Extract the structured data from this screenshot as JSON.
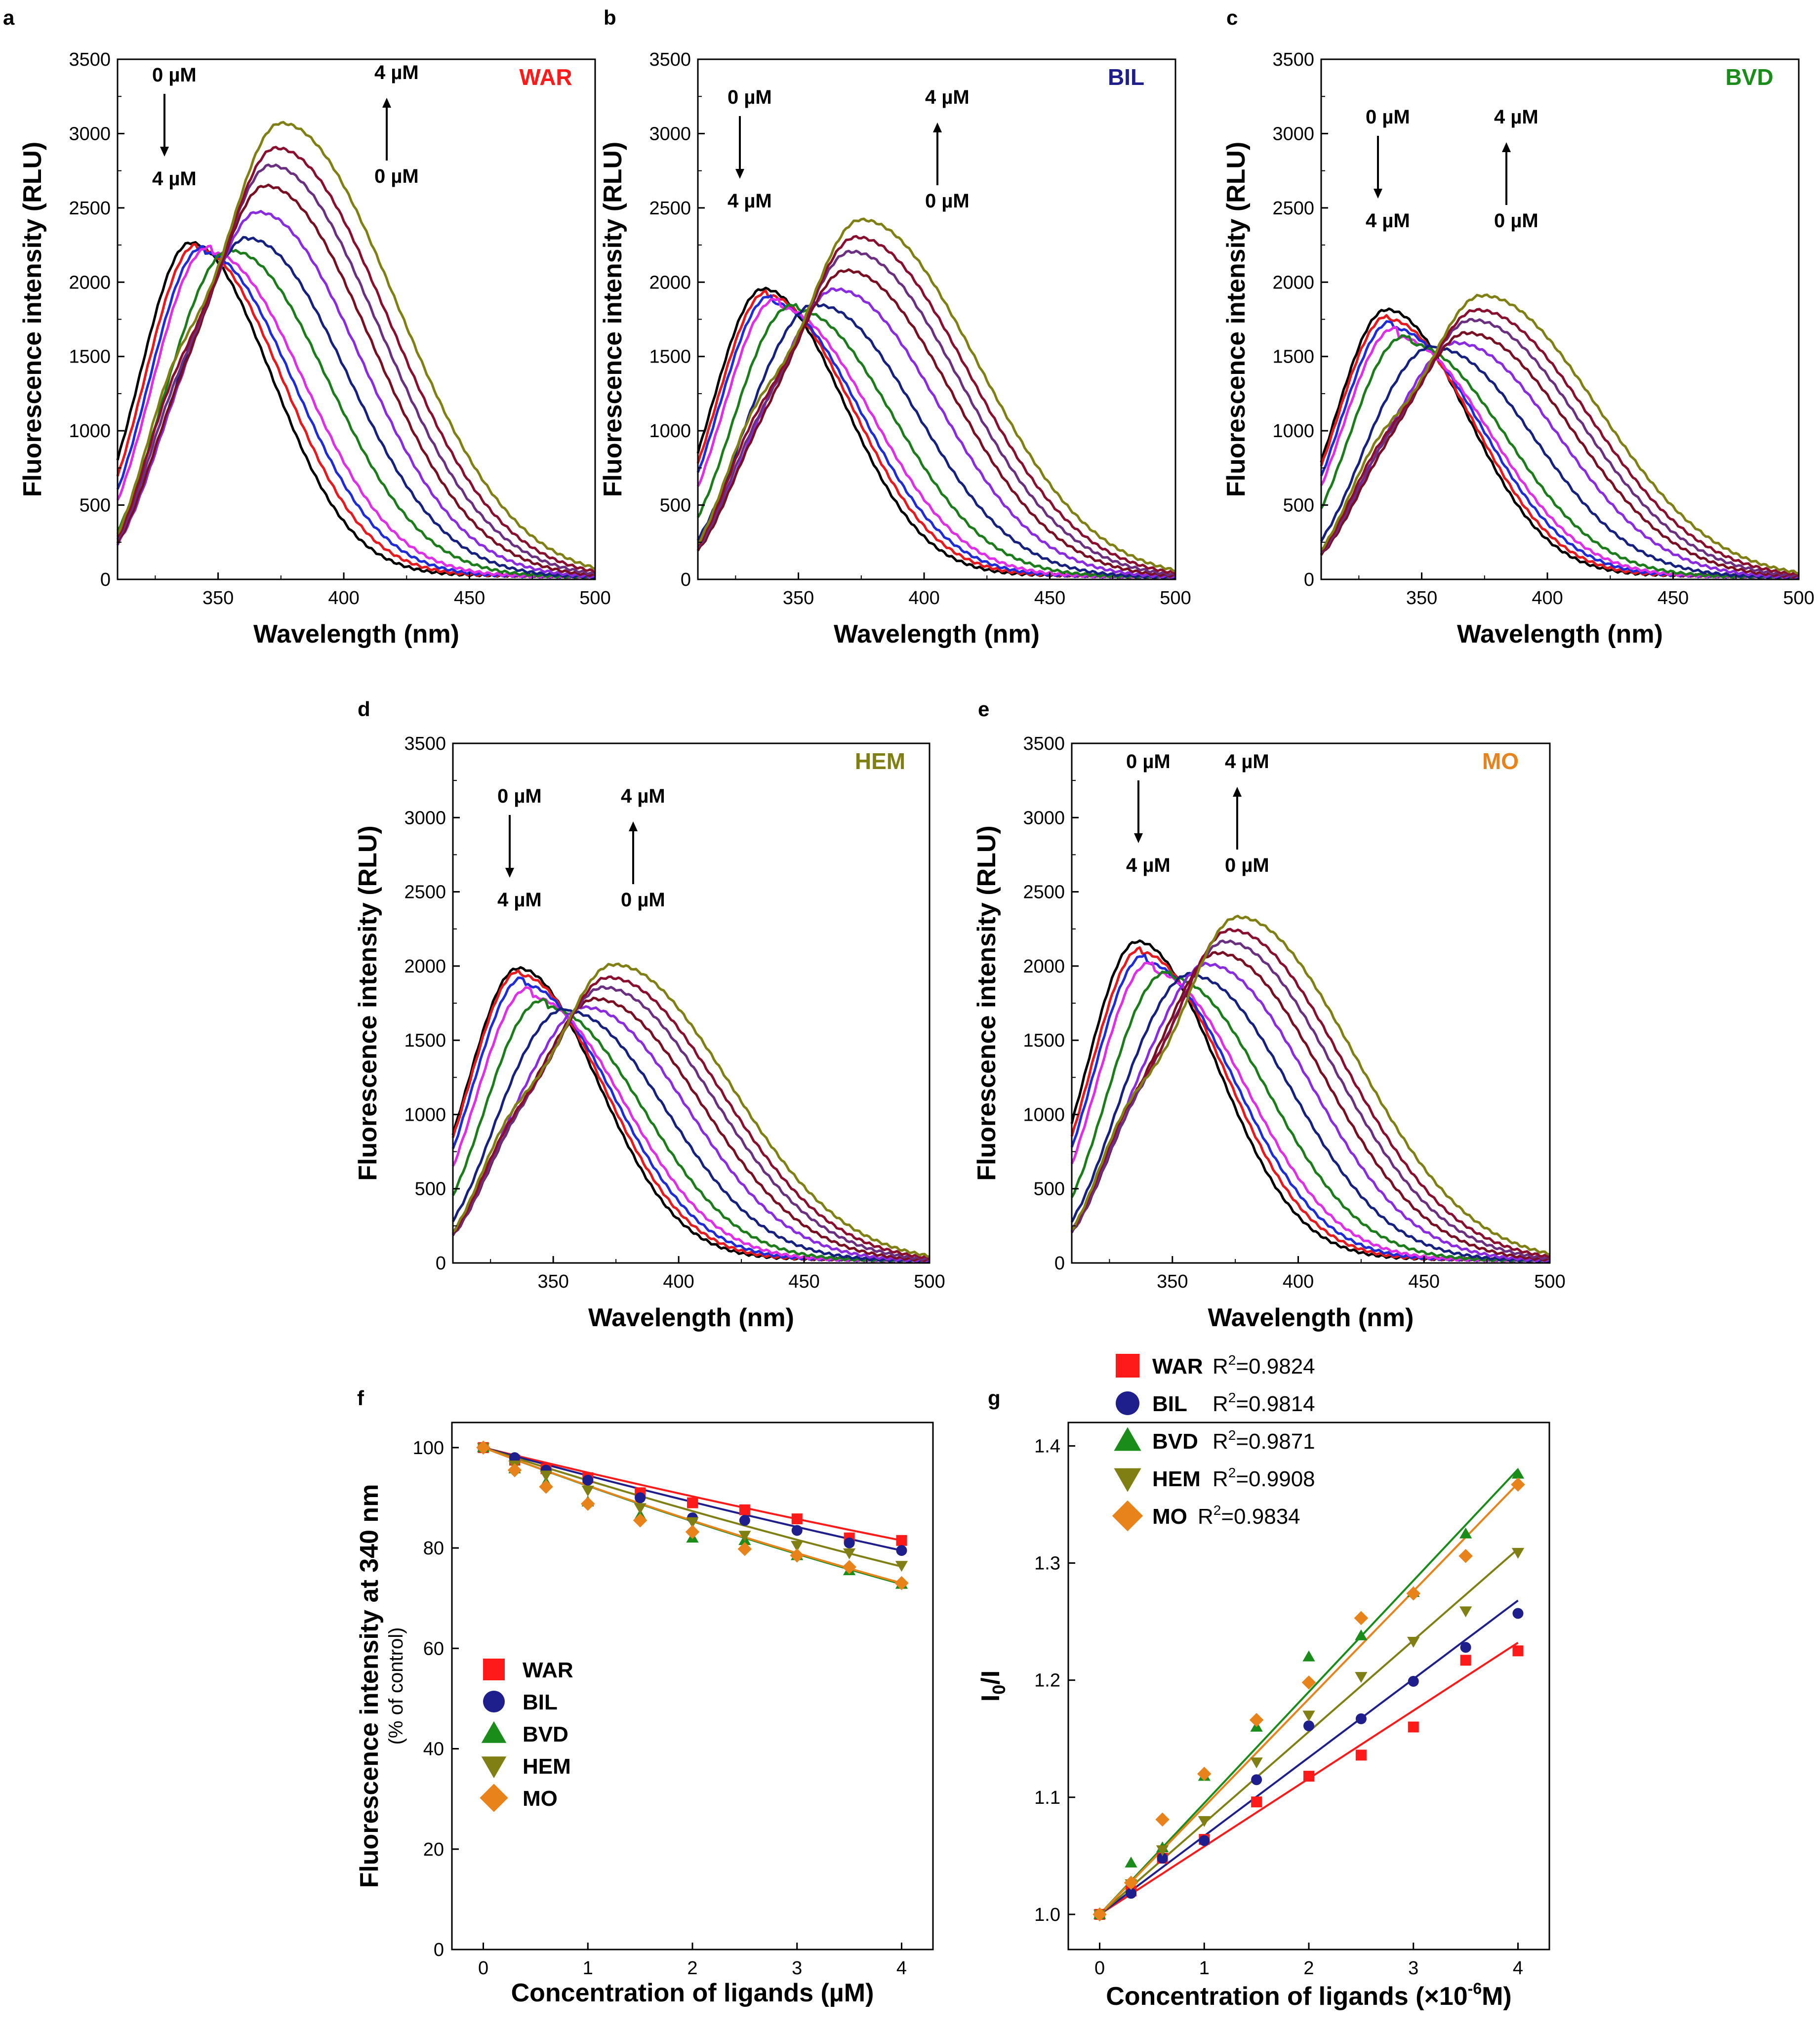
{
  "figure": {
    "series_colors": [
      "#000000",
      "#e8191c",
      "#1e2bd8",
      "#e02ee8",
      "#1a7d1a",
      "#152080",
      "#8a2be2",
      "#7a0f22",
      "#6a2f80",
      "#8a0f2f",
      "#7f7f14"
    ],
    "conc_start": "0 µM",
    "conc_end": "4 µM"
  },
  "chart_data": [
    {
      "id": "a",
      "panel_label": "a",
      "type": "line",
      "ligand": "WAR",
      "ligand_color": "#ff1a1a",
      "title": "WAR",
      "xlabel": "Wavelength (nm)",
      "ylabel": "Fluorescence intensity (RLU)",
      "xlim": [
        310,
        500
      ],
      "ylim": [
        0,
        3500
      ],
      "xticks": [
        350,
        400,
        450,
        500
      ],
      "yticks": [
        0,
        500,
        1000,
        1500,
        2000,
        2500,
        3000,
        3500
      ],
      "ann": {
        "left_top": "0 µM",
        "left_bottom": "4 µM",
        "right_top": "4 µM",
        "right_bottom": "0 µM"
      },
      "series_peaks_nm": [
        339,
        342,
        345,
        348,
        356,
        362,
        366,
        369,
        371,
        373,
        375
      ],
      "series_peak_rlu": [
        2240,
        2200,
        2170,
        2170,
        2190,
        2280,
        2460,
        2640,
        2780,
        2900,
        3070
      ],
      "isosbestic": [
        345,
        2180
      ]
    },
    {
      "id": "b",
      "panel_label": "b",
      "type": "line",
      "ligand": "BIL",
      "ligand_color": "#1e1e8c",
      "title": "BIL",
      "xlabel": "Wavelength (nm)",
      "ylabel": "Fluorescence intensity (RLU)",
      "xlim": [
        310,
        500
      ],
      "ylim": [
        0,
        3500
      ],
      "xticks": [
        350,
        400,
        450,
        500
      ],
      "yticks": [
        0,
        500,
        1000,
        1500,
        2000,
        2500,
        3000,
        3500
      ],
      "ann": {
        "left_top": "0 µM",
        "left_bottom": "4 µM",
        "right_top": "4 µM",
        "right_bottom": "0 µM"
      },
      "series_peaks_nm": [
        336,
        338,
        340,
        343,
        350,
        358,
        365,
        369,
        371,
        373,
        375
      ],
      "series_peak_rlu": [
        1930,
        1880,
        1830,
        1800,
        1790,
        1830,
        1940,
        2070,
        2200,
        2300,
        2420
      ],
      "isosbestic": [
        349,
        1830
      ]
    },
    {
      "id": "c",
      "panel_label": "c",
      "type": "line",
      "ligand": "BVD",
      "ligand_color": "#1a8c1a",
      "title": "BVD",
      "xlabel": "Wavelength (nm)",
      "ylabel": "Fluorescence intensity (RLU)",
      "xlim": [
        310,
        500
      ],
      "ylim": [
        0,
        3500
      ],
      "xticks": [
        350,
        400,
        450,
        500
      ],
      "yticks": [
        0,
        500,
        1000,
        1500,
        2000,
        2500,
        3000,
        3500
      ],
      "ann": {
        "left_top": "0 µM",
        "left_bottom": "4 µM",
        "right_top": "4 µM",
        "right_bottom": "0 µM"
      },
      "series_peaks_nm": [
        336,
        337,
        339,
        341,
        346,
        356,
        364,
        368,
        370,
        372,
        374
      ],
      "series_peak_rlu": [
        1790,
        1720,
        1660,
        1600,
        1560,
        1540,
        1580,
        1650,
        1740,
        1810,
        1910
      ],
      "isosbestic": [
        351,
        1580
      ]
    },
    {
      "id": "d",
      "panel_label": "d",
      "type": "line",
      "ligand": "HEM",
      "ligand_color": "#7f7f14",
      "title": "HEM",
      "xlabel": "Wavelength (nm)",
      "ylabel": "Fluorescence intensity (RLU)",
      "xlim": [
        310,
        500
      ],
      "ylim": [
        0,
        3500
      ],
      "xticks": [
        350,
        400,
        450,
        500
      ],
      "yticks": [
        0,
        500,
        1000,
        1500,
        2000,
        2500,
        3000,
        3500
      ],
      "ann": {
        "left_top": "0 µM",
        "left_bottom": "4 µM",
        "right_top": "4 µM",
        "right_bottom": "0 µM"
      },
      "series_peaks_nm": [
        336,
        337,
        339,
        342,
        348,
        356,
        363,
        367,
        370,
        372,
        374
      ],
      "series_peak_rlu": [
        1960,
        1910,
        1840,
        1760,
        1700,
        1680,
        1710,
        1770,
        1850,
        1920,
        2010
      ],
      "isosbestic": [
        349,
        1740
      ]
    },
    {
      "id": "e",
      "panel_label": "e",
      "type": "line",
      "ligand": "MO",
      "ligand_color": "#e8821a",
      "title": "MO",
      "xlabel": "Wavelength (nm)",
      "ylabel": "Fluorescence intensity (RLU)",
      "xlim": [
        310,
        500
      ],
      "ylim": [
        0,
        3500
      ],
      "xticks": [
        350,
        400,
        450,
        500
      ],
      "yticks": [
        0,
        500,
        1000,
        1500,
        2000,
        2500,
        3000,
        3500
      ],
      "ann": {
        "left_top": "0 µM",
        "left_bottom": "4 µM",
        "right_top": "4 µM",
        "right_bottom": "0 µM"
      },
      "series_peaks_nm": [
        336,
        338,
        340,
        343,
        350,
        358,
        364,
        368,
        371,
        373,
        376
      ],
      "series_peak_rlu": [
        2140,
        2060,
        1990,
        1930,
        1900,
        1920,
        2000,
        2080,
        2160,
        2240,
        2330
      ],
      "isosbestic": [
        350,
        1910
      ]
    },
    {
      "id": "f",
      "panel_label": "f",
      "type": "scatter",
      "xlabel": "Concentration of ligands (µM)",
      "ylabel": "Fluorescence intensity at 340 nm",
      "ylabel_sub": "(% of control)",
      "xlim": [
        -0.3,
        4.3
      ],
      "ylim": [
        0,
        105
      ],
      "xticks": [
        0,
        1,
        2,
        3,
        4
      ],
      "yticks": [
        0,
        20,
        40,
        60,
        80,
        100
      ],
      "x": [
        0,
        0.3,
        0.6,
        1.0,
        1.5,
        2.0,
        2.5,
        3.0,
        3.5,
        4.0
      ],
      "series": [
        {
          "name": "WAR",
          "color": "#ff1a1a",
          "marker": "square",
          "values": [
            100,
            97.5,
            95.8,
            94.0,
            91.0,
            89.0,
            87.6,
            85.8,
            82.0,
            81.5
          ],
          "fit_end": 81.5
        },
        {
          "name": "BIL",
          "color": "#1e1e8c",
          "marker": "circle",
          "values": [
            100,
            98.0,
            95.5,
            93.5,
            90.0,
            86.0,
            85.5,
            83.5,
            81.0,
            79.5
          ],
          "fit_end": 79.5
        },
        {
          "name": "BVD",
          "color": "#1a8c1a",
          "marker": "triangle-up",
          "values": [
            100,
            95.8,
            93.0,
            89.2,
            86.5,
            82.0,
            81.5,
            78.5,
            75.5,
            72.8
          ],
          "fit_end": 72.8
        },
        {
          "name": "HEM",
          "color": "#7f7f14",
          "marker": "triangle-down",
          "values": [
            100,
            96.5,
            94.5,
            91.5,
            88.0,
            85.2,
            82.5,
            80.5,
            79.0,
            76.5
          ],
          "fit_end": 76.3
        },
        {
          "name": "MO",
          "color": "#e8821a",
          "marker": "diamond",
          "values": [
            100,
            95.5,
            92.2,
            88.8,
            85.5,
            83.2,
            79.8,
            78.5,
            76.2,
            73.0
          ],
          "fit_end": 73.0
        }
      ],
      "legend": [
        "WAR",
        "BIL",
        "BVD",
        "HEM",
        "MO"
      ]
    },
    {
      "id": "g",
      "panel_label": "g",
      "type": "scatter",
      "xlabel": "Concentration of ligands (×10",
      "xlabel_sup": "-6",
      "xlabel_tail": "M)",
      "ylabel": "I",
      "ylabel_sub_idx": "0",
      "ylabel_tail": "/I",
      "xlim": [
        -0.3,
        4.3
      ],
      "ylim": [
        0.97,
        1.42
      ],
      "xticks": [
        0,
        1,
        2,
        3,
        4
      ],
      "yticks": [
        1.0,
        1.1,
        1.2,
        1.3,
        1.4
      ],
      "ytick_labels": [
        "1.0",
        "1.1",
        "1.2",
        "1.3",
        "1.4"
      ],
      "x": [
        0,
        0.3,
        0.6,
        1.0,
        1.5,
        2.0,
        2.5,
        3.0,
        3.5,
        4.0
      ],
      "series": [
        {
          "name": "WAR",
          "r2": "R2=0.9824",
          "r2_pre": "R",
          "r2_sup": "2",
          "r2_post": "=0.9824",
          "color": "#ff1a1a",
          "marker": "square",
          "values": [
            1.0,
            1.02,
            1.048,
            1.064,
            1.096,
            1.118,
            1.136,
            1.16,
            1.217,
            1.225
          ],
          "slope": 0.058
        },
        {
          "name": "BIL",
          "r2": "R2=0.9814",
          "r2_pre": "R",
          "r2_sup": "2",
          "r2_post": "=0.9814",
          "color": "#1e1e8c",
          "marker": "circle",
          "values": [
            1.0,
            1.018,
            1.048,
            1.063,
            1.115,
            1.161,
            1.167,
            1.199,
            1.228,
            1.257
          ],
          "slope": 0.067
        },
        {
          "name": "BVD",
          "r2": "R2=0.9871",
          "r2_pre": "R",
          "r2_sup": "2",
          "r2_post": "=0.9871",
          "color": "#1a8c1a",
          "marker": "triangle-up",
          "values": [
            1.0,
            1.044,
            1.057,
            1.118,
            1.16,
            1.22,
            1.238,
            1.275,
            1.325,
            1.376
          ],
          "slope": 0.095
        },
        {
          "name": "HEM",
          "r2": "R2=0.9908",
          "r2_pre": "R",
          "r2_sup": "2",
          "r2_post": "=0.9908",
          "color": "#7f7f14",
          "marker": "triangle-down",
          "values": [
            1.0,
            1.026,
            1.055,
            1.08,
            1.13,
            1.17,
            1.203,
            1.233,
            1.259,
            1.309
          ],
          "slope": 0.078
        },
        {
          "name": "MO",
          "r2": "R2=0.9834",
          "r2_pre": "R",
          "r2_sup": "2",
          "r2_post": "=0.9834",
          "color": "#e8821a",
          "marker": "diamond",
          "values": [
            1.0,
            1.027,
            1.081,
            1.12,
            1.166,
            1.198,
            1.253,
            1.274,
            1.306,
            1.367
          ],
          "slope": 0.092
        }
      ]
    }
  ]
}
